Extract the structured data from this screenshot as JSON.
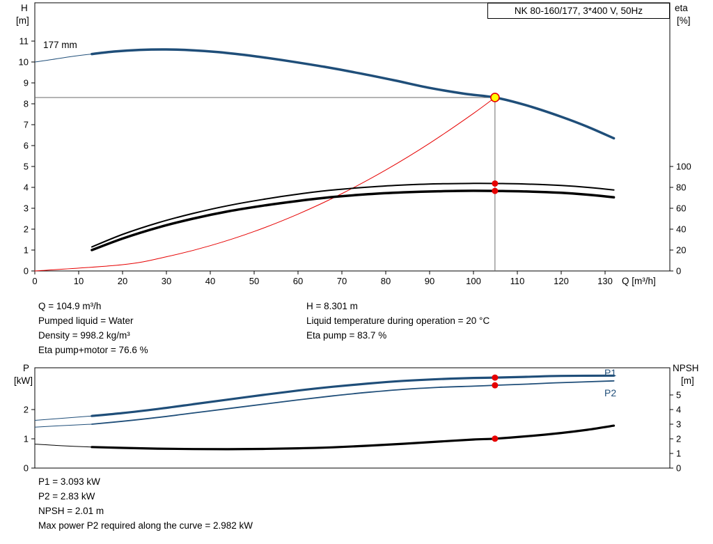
{
  "model_box": {
    "label": "NK 80-160/177, 3*400 V, 50Hz"
  },
  "impeller_label": "177 mm",
  "axis_labels": {
    "h_line1": "H",
    "h_line2": "[m]",
    "eta_line1": "eta",
    "eta_line2": "[%]",
    "q_label": "Q [m³/h]",
    "p_line1": "P",
    "p_line2": "[kW]",
    "npsh_line1": "NPSH",
    "npsh_line2": "[m]",
    "p1": "P1",
    "p2": "P2"
  },
  "duty_info": {
    "col1": [
      "Q = 104.9 m³/h",
      "Pumped liquid = Water",
      "Density = 998.2 kg/m³",
      "Eta pump+motor = 76.6 %"
    ],
    "col2": [
      "H = 8.301 m",
      "Liquid temperature during operation = 20 °C",
      "Eta pump = 83.7 %"
    ]
  },
  "power_info": [
    "P1 = 3.093 kW",
    "P2 = 2.83 kW",
    "NPSH = 2.01 m",
    "Max power P2 required along the curve = 2.982 kW"
  ],
  "colors": {
    "curve_blue": "#1f4e79",
    "curve_black": "#000000",
    "curve_red": "#e60000",
    "duty_yellow": "#ffff00",
    "crosshair_gray": "#6a6a6a",
    "axis_black": "#000000"
  },
  "chart_data": [
    {
      "type": "line",
      "title": "NK 80-160/177, 3*400 V, 50Hz",
      "xlabel": "Q [m³/h]",
      "ylabel_left": "H [m]",
      "ylabel_right": "eta [%]",
      "xlim": [
        0,
        145
      ],
      "ylim_left": [
        0,
        11
      ],
      "ylim_right": [
        0,
        100
      ],
      "x_ticks": [
        0,
        10,
        20,
        30,
        40,
        50,
        60,
        70,
        80,
        90,
        100,
        110,
        120,
        130
      ],
      "x_tick_labels": true,
      "y_ticks_left": [
        0,
        1,
        2,
        3,
        4,
        5,
        6,
        7,
        8,
        9,
        10,
        11
      ],
      "y_ticks_right": [
        0,
        20,
        40,
        60,
        80,
        100
      ],
      "curve_label": "177 mm",
      "duty_point": {
        "Q": 104.9,
        "H": 8.301,
        "eta_pump": 83.7,
        "eta_pump_motor": 76.6
      },
      "series": [
        {
          "name": "head-curve",
          "axis": "left",
          "color": "curve_blue",
          "width": 3.5,
          "lead": [
            [
              0,
              10.0
            ],
            [
              4,
              10.12
            ],
            [
              8,
              10.25
            ],
            [
              13,
              10.38
            ]
          ],
          "points": [
            [
              13,
              10.38
            ],
            [
              18,
              10.5
            ],
            [
              24,
              10.58
            ],
            [
              30,
              10.6
            ],
            [
              36,
              10.56
            ],
            [
              42,
              10.47
            ],
            [
              50,
              10.28
            ],
            [
              58,
              10.04
            ],
            [
              66,
              9.77
            ],
            [
              74,
              9.46
            ],
            [
              82,
              9.12
            ],
            [
              90,
              8.76
            ],
            [
              98,
              8.48
            ],
            [
              104.9,
              8.301
            ],
            [
              112,
              7.93
            ],
            [
              120,
              7.38
            ],
            [
              126,
              6.9
            ],
            [
              132,
              6.35
            ]
          ]
        },
        {
          "name": "system-duty-curve",
          "axis": "left",
          "color": "curve_red",
          "width": 1,
          "points": [
            [
              0,
              0
            ],
            [
              20,
              0.3
            ],
            [
              30,
              0.68
            ],
            [
              40,
              1.21
            ],
            [
              50,
              1.89
            ],
            [
              60,
              2.72
            ],
            [
              70,
              3.7
            ],
            [
              80,
              4.83
            ],
            [
              90,
              6.11
            ],
            [
              100,
              7.54
            ],
            [
              104.9,
              8.301
            ]
          ]
        },
        {
          "name": "eta-pump-curve",
          "axis": "right",
          "color": "curve_black",
          "width": 2,
          "points": [
            [
              13,
              23
            ],
            [
              20,
              35
            ],
            [
              28,
              46
            ],
            [
              36,
              55
            ],
            [
              44,
              62.5
            ],
            [
              52,
              68.5
            ],
            [
              60,
              73.5
            ],
            [
              68,
              77.5
            ],
            [
              76,
              80.3
            ],
            [
              84,
              82.3
            ],
            [
              92,
              83.4
            ],
            [
              100,
              83.8
            ],
            [
              104.9,
              83.7
            ],
            [
              112,
              83.2
            ],
            [
              120,
              81.8
            ],
            [
              126,
              80
            ],
            [
              132,
              77.5
            ]
          ]
        },
        {
          "name": "eta-pump-motor-curve",
          "axis": "right",
          "color": "curve_black",
          "width": 3.5,
          "points": [
            [
              13,
              20
            ],
            [
              20,
              31
            ],
            [
              28,
              41.5
            ],
            [
              36,
              50
            ],
            [
              44,
              57
            ],
            [
              52,
              62.5
            ],
            [
              60,
              67
            ],
            [
              68,
              70.8
            ],
            [
              76,
              73.5
            ],
            [
              84,
              75.3
            ],
            [
              92,
              76.3
            ],
            [
              100,
              76.7
            ],
            [
              104.9,
              76.6
            ],
            [
              112,
              76.1
            ],
            [
              120,
              74.8
            ],
            [
              126,
              73
            ],
            [
              132,
              70.5
            ]
          ]
        }
      ],
      "markers": [
        {
          "type": "dot",
          "axis": "right",
          "q": 104.9,
          "v": 83.7
        },
        {
          "type": "dot",
          "axis": "right",
          "q": 104.9,
          "v": 76.6
        },
        {
          "type": "duty",
          "axis": "left",
          "q": 104.9,
          "v": 8.301
        }
      ],
      "crosshair": {
        "q": 104.9,
        "v": 8.301
      }
    },
    {
      "type": "line",
      "title": "",
      "xlabel": "",
      "ylabel_left": "P [kW]",
      "ylabel_right": "NPSH [m]",
      "xlim": [
        0,
        145
      ],
      "ylim_left": [
        0,
        3.4
      ],
      "ylim_right": [
        0,
        6.9
      ],
      "x_ticks": [],
      "x_tick_labels": false,
      "y_ticks_left": [
        0,
        1,
        2
      ],
      "y_ticks_right": [
        0,
        1,
        2,
        3,
        4,
        5
      ],
      "duty_point": {
        "Q": 104.9,
        "P1": 3.093,
        "P2": 2.83,
        "NPSH": 2.01,
        "max_P2_along_curve": 2.982
      },
      "series": [
        {
          "name": "p1-curve",
          "axis": "left",
          "color": "curve_blue",
          "width": 3.2,
          "lead": [
            [
              0,
              1.63
            ],
            [
              6,
              1.7
            ],
            [
              13,
              1.78
            ]
          ],
          "points": [
            [
              13,
              1.78
            ],
            [
              20,
              1.88
            ],
            [
              28,
              2.02
            ],
            [
              36,
              2.18
            ],
            [
              44,
              2.34
            ],
            [
              52,
              2.5
            ],
            [
              60,
              2.65
            ],
            [
              68,
              2.78
            ],
            [
              76,
              2.89
            ],
            [
              84,
              2.98
            ],
            [
              92,
              3.04
            ],
            [
              100,
              3.08
            ],
            [
              104.9,
              3.093
            ],
            [
              112,
              3.12
            ],
            [
              120,
              3.15
            ],
            [
              132,
              3.16
            ]
          ]
        },
        {
          "name": "p2-curve",
          "axis": "left",
          "color": "curve_blue",
          "width": 1.8,
          "lead": [
            [
              0,
              1.4
            ],
            [
              6,
              1.45
            ],
            [
              13,
              1.5
            ]
          ],
          "points": [
            [
              13,
              1.5
            ],
            [
              20,
              1.6
            ],
            [
              28,
              1.73
            ],
            [
              36,
              1.88
            ],
            [
              44,
              2.03
            ],
            [
              52,
              2.18
            ],
            [
              60,
              2.33
            ],
            [
              68,
              2.47
            ],
            [
              76,
              2.59
            ],
            [
              84,
              2.69
            ],
            [
              92,
              2.76
            ],
            [
              100,
              2.8
            ],
            [
              104.9,
              2.83
            ],
            [
              112,
              2.87
            ],
            [
              120,
              2.92
            ],
            [
              132,
              2.98
            ]
          ]
        },
        {
          "name": "npsh-curve",
          "axis": "right",
          "color": "curve_black",
          "width": 3.2,
          "lead": [
            [
              0,
              1.64
            ],
            [
              6,
              1.53
            ],
            [
              13,
              1.44
            ]
          ],
          "points": [
            [
              13,
              1.44
            ],
            [
              20,
              1.38
            ],
            [
              28,
              1.33
            ],
            [
              36,
              1.3
            ],
            [
              44,
              1.29
            ],
            [
              52,
              1.31
            ],
            [
              60,
              1.35
            ],
            [
              68,
              1.42
            ],
            [
              76,
              1.53
            ],
            [
              84,
              1.66
            ],
            [
              92,
              1.81
            ],
            [
              100,
              1.95
            ],
            [
              104.9,
              2.01
            ],
            [
              112,
              2.17
            ],
            [
              120,
              2.4
            ],
            [
              126,
              2.62
            ],
            [
              132,
              2.9
            ]
          ]
        }
      ],
      "markers": [
        {
          "type": "dot",
          "axis": "left",
          "q": 104.9,
          "v": 3.093
        },
        {
          "type": "dot",
          "axis": "left",
          "q": 104.9,
          "v": 2.83
        },
        {
          "type": "dot",
          "axis": "right",
          "q": 104.9,
          "v": 2.01
        }
      ]
    }
  ]
}
